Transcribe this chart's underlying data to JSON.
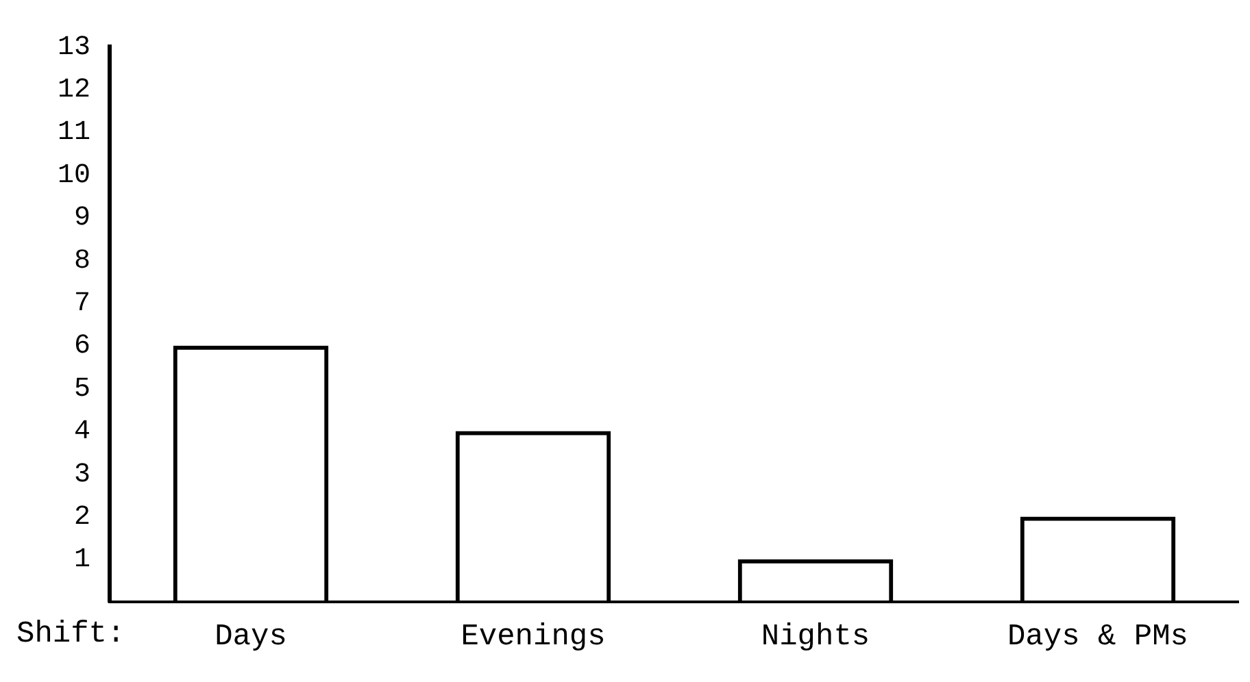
{
  "chart_data": {
    "type": "bar",
    "xlabel": "Shift:",
    "categories": [
      "Days",
      "Evenings",
      "Nights",
      "Days & PMs"
    ],
    "values": [
      6,
      4,
      1,
      2
    ],
    "color": "#000000",
    "ylim": [
      0,
      13
    ],
    "yticks": [
      1,
      2,
      3,
      4,
      5,
      6,
      7,
      8,
      9,
      10,
      11,
      12,
      13
    ],
    "grid": false,
    "legend": false
  }
}
